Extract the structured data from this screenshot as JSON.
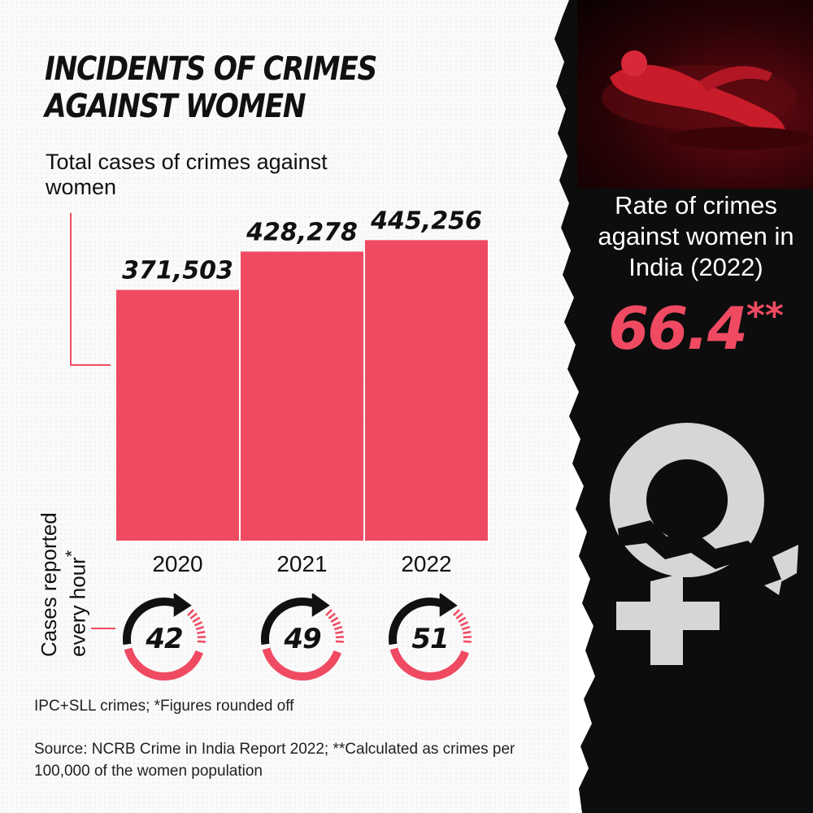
{
  "title_line1": "INCIDENTS OF CRIMES",
  "title_line2": "AGAINST WOMEN",
  "subtitle": "Total cases of crimes against women",
  "cases_hour_label_line1": "Cases reported",
  "cases_hour_label_line2": "every hour",
  "cases_hour_label_mark": "*",
  "cases_per_hour": [
    {
      "year": "2020",
      "value": "42"
    },
    {
      "year": "2021",
      "value": "49"
    },
    {
      "year": "2022",
      "value": "51"
    }
  ],
  "footnote": "IPC+SLL crimes; *Figures rounded off",
  "source": "Source: NCRB Crime in India Report 2022; **Calculated as crimes per 100,000 of the women population",
  "rate": {
    "label": "Rate of crimes against women in India (2022)",
    "value": "66.4",
    "mark": "**"
  },
  "colors": {
    "accent": "#f04a62",
    "dark_panel": "#0d0d0d",
    "symbol": "#d6d6d6"
  },
  "icons": {
    "dial": "clock-arrow-icon",
    "symbol": "cracked-venus-icon",
    "photo": "victim-photo"
  },
  "chart_data": {
    "type": "bar",
    "title": "INCIDENTS OF CRIMES AGAINST WOMEN",
    "subtitle": "Total cases of crimes against women",
    "categories": [
      "2020",
      "2021",
      "2022"
    ],
    "values": [
      371503,
      428278,
      445256
    ],
    "data_labels": [
      "371,503",
      "428,278",
      "445,256"
    ],
    "xlabel": "",
    "ylabel": "",
    "ylim": [
      0,
      530000
    ],
    "grid": false,
    "legend": "none",
    "color": "#f04a62"
  }
}
